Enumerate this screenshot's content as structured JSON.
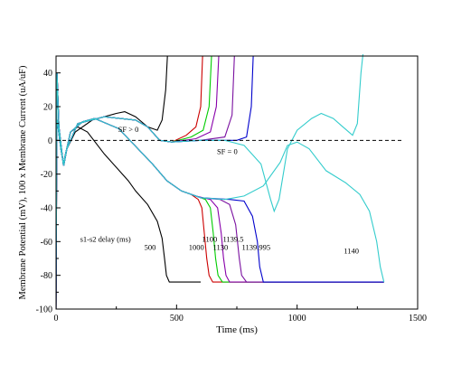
{
  "chart_data": {
    "type": "line",
    "title": "",
    "xlabel": "Time (ms)",
    "ylabel": "Membrane Potential (mV), 100 x Membrane Current (uA/uF)",
    "xlim": [
      0,
      1500
    ],
    "ylim": [
      -100,
      50
    ],
    "x_ticks": [
      0,
      500,
      1000,
      1500
    ],
    "y_ticks": [
      -100,
      -80,
      -60,
      -40,
      -20,
      0,
      20,
      40
    ],
    "grid": false,
    "legend": "none",
    "colors": {
      "black": "#000000",
      "red": "#cc0000",
      "green": "#00cc00",
      "purple": "#8800aa",
      "violet": "#7a10a0",
      "blue": "#0000cc",
      "cyan": "#33cccc"
    },
    "annotations": [
      {
        "text": "SF > 0",
        "x": 300,
        "y": 5
      },
      {
        "text": "SF = 0",
        "x": 710,
        "y": -8
      },
      {
        "text": "s1-s2 delay (ms)",
        "x": 205,
        "y": -60
      },
      {
        "text": "500",
        "x": 390,
        "y": -65
      },
      {
        "text": "1000",
        "x": 582,
        "y": -65
      },
      {
        "text": "1100",
        "x": 637,
        "y": -60
      },
      {
        "text": "1130",
        "x": 682,
        "y": -65
      },
      {
        "text": "1139.5",
        "x": 735,
        "y": -60
      },
      {
        "text": "1139.995",
        "x": 830,
        "y": -65
      },
      {
        "text": "1140",
        "x": 1225,
        "y": -67
      }
    ],
    "series": [
      {
        "color": "#000000",
        "voltage": [
          [
            0,
            -100
          ],
          [
            4,
            40
          ],
          [
            12,
            8
          ],
          [
            30,
            -14
          ],
          [
            60,
            5
          ],
          [
            90,
            8
          ],
          [
            130,
            5
          ],
          [
            200,
            -8
          ],
          [
            300,
            -24
          ],
          [
            330,
            -30
          ],
          [
            380,
            -38
          ],
          [
            420,
            -48
          ],
          [
            440,
            -58
          ],
          [
            450,
            -70
          ],
          [
            458,
            -80
          ],
          [
            470,
            -84
          ],
          [
            600,
            -84
          ]
        ],
        "current": [
          [
            0,
            5
          ],
          [
            5,
            12
          ],
          [
            20,
            -5
          ],
          [
            32,
            -15
          ],
          [
            45,
            -5
          ],
          [
            80,
            5
          ],
          [
            150,
            12
          ],
          [
            200,
            14
          ],
          [
            250,
            16
          ],
          [
            285,
            17
          ],
          [
            330,
            14
          ],
          [
            380,
            8
          ],
          [
            420,
            6
          ],
          [
            440,
            12
          ],
          [
            455,
            30
          ],
          [
            462,
            50
          ]
        ]
      },
      {
        "color": "#cc0000",
        "voltage": [
          [
            0,
            -100
          ],
          [
            4,
            40
          ],
          [
            12,
            8
          ],
          [
            30,
            -14
          ],
          [
            60,
            5
          ],
          [
            110,
            11
          ],
          [
            160,
            13
          ],
          [
            260,
            7
          ],
          [
            400,
            -14
          ],
          [
            460,
            -24
          ],
          [
            520,
            -30
          ],
          [
            560,
            -32
          ],
          [
            590,
            -35
          ],
          [
            605,
            -40
          ],
          [
            615,
            -55
          ],
          [
            625,
            -70
          ],
          [
            635,
            -80
          ],
          [
            650,
            -84
          ],
          [
            1360,
            -84
          ]
        ],
        "current": [
          [
            0,
            5
          ],
          [
            5,
            12
          ],
          [
            20,
            -5
          ],
          [
            32,
            -15
          ],
          [
            45,
            -5
          ],
          [
            90,
            10
          ],
          [
            200,
            14
          ],
          [
            330,
            12
          ],
          [
            380,
            8
          ],
          [
            430,
            0
          ],
          [
            480,
            -1
          ],
          [
            540,
            3
          ],
          [
            580,
            8
          ],
          [
            600,
            20
          ],
          [
            608,
            50
          ]
        ]
      },
      {
        "color": "#00cc00",
        "voltage": [
          [
            0,
            -100
          ],
          [
            4,
            40
          ],
          [
            12,
            8
          ],
          [
            30,
            -14
          ],
          [
            60,
            5
          ],
          [
            110,
            11
          ],
          [
            160,
            13
          ],
          [
            260,
            7
          ],
          [
            400,
            -14
          ],
          [
            460,
            -24
          ],
          [
            520,
            -30
          ],
          [
            580,
            -33
          ],
          [
            620,
            -35
          ],
          [
            640,
            -40
          ],
          [
            652,
            -55
          ],
          [
            662,
            -70
          ],
          [
            672,
            -80
          ],
          [
            690,
            -84
          ],
          [
            1360,
            -84
          ]
        ],
        "current": [
          [
            0,
            5
          ],
          [
            5,
            12
          ],
          [
            20,
            -5
          ],
          [
            32,
            -15
          ],
          [
            45,
            -5
          ],
          [
            90,
            10
          ],
          [
            200,
            14
          ],
          [
            330,
            12
          ],
          [
            380,
            8
          ],
          [
            430,
            0
          ],
          [
            480,
            -1
          ],
          [
            560,
            2
          ],
          [
            610,
            6
          ],
          [
            635,
            20
          ],
          [
            645,
            50
          ]
        ]
      },
      {
        "color": "#8800aa",
        "voltage": [
          [
            0,
            -100
          ],
          [
            4,
            40
          ],
          [
            12,
            8
          ],
          [
            30,
            -14
          ],
          [
            60,
            5
          ],
          [
            110,
            11
          ],
          [
            160,
            13
          ],
          [
            260,
            7
          ],
          [
            400,
            -14
          ],
          [
            460,
            -24
          ],
          [
            520,
            -30
          ],
          [
            580,
            -33
          ],
          [
            640,
            -35
          ],
          [
            670,
            -40
          ],
          [
            685,
            -55
          ],
          [
            695,
            -70
          ],
          [
            705,
            -80
          ],
          [
            720,
            -84
          ],
          [
            1360,
            -84
          ]
        ],
        "current": [
          [
            0,
            5
          ],
          [
            5,
            12
          ],
          [
            20,
            -5
          ],
          [
            32,
            -15
          ],
          [
            45,
            -5
          ],
          [
            90,
            10
          ],
          [
            200,
            14
          ],
          [
            330,
            12
          ],
          [
            380,
            8
          ],
          [
            430,
            0
          ],
          [
            480,
            -1
          ],
          [
            580,
            1
          ],
          [
            640,
            5
          ],
          [
            665,
            20
          ],
          [
            675,
            50
          ]
        ]
      },
      {
        "color": "#7a10a0",
        "voltage": [
          [
            0,
            -100
          ],
          [
            4,
            40
          ],
          [
            12,
            8
          ],
          [
            30,
            -14
          ],
          [
            60,
            5
          ],
          [
            110,
            11
          ],
          [
            160,
            13
          ],
          [
            260,
            7
          ],
          [
            400,
            -14
          ],
          [
            460,
            -24
          ],
          [
            520,
            -30
          ],
          [
            600,
            -34
          ],
          [
            680,
            -35
          ],
          [
            720,
            -38
          ],
          [
            745,
            -50
          ],
          [
            760,
            -70
          ],
          [
            770,
            -80
          ],
          [
            790,
            -84
          ],
          [
            1360,
            -84
          ]
        ],
        "current": [
          [
            0,
            5
          ],
          [
            5,
            12
          ],
          [
            20,
            -5
          ],
          [
            32,
            -15
          ],
          [
            45,
            -5
          ],
          [
            90,
            10
          ],
          [
            200,
            14
          ],
          [
            330,
            12
          ],
          [
            380,
            8
          ],
          [
            430,
            0
          ],
          [
            480,
            -1
          ],
          [
            600,
            0
          ],
          [
            700,
            2
          ],
          [
            730,
            15
          ],
          [
            740,
            50
          ]
        ]
      },
      {
        "color": "#0000cc",
        "voltage": [
          [
            0,
            -100
          ],
          [
            4,
            40
          ],
          [
            12,
            8
          ],
          [
            30,
            -14
          ],
          [
            60,
            5
          ],
          [
            110,
            11
          ],
          [
            160,
            13
          ],
          [
            260,
            7
          ],
          [
            400,
            -14
          ],
          [
            460,
            -24
          ],
          [
            520,
            -30
          ],
          [
            600,
            -34
          ],
          [
            720,
            -35
          ],
          [
            780,
            -36
          ],
          [
            815,
            -45
          ],
          [
            835,
            -60
          ],
          [
            845,
            -75
          ],
          [
            860,
            -84
          ],
          [
            1360,
            -84
          ]
        ],
        "current": [
          [
            0,
            5
          ],
          [
            5,
            12
          ],
          [
            20,
            -5
          ],
          [
            32,
            -15
          ],
          [
            45,
            -5
          ],
          [
            90,
            10
          ],
          [
            200,
            14
          ],
          [
            330,
            12
          ],
          [
            380,
            8
          ],
          [
            430,
            0
          ],
          [
            480,
            -1
          ],
          [
            600,
            0
          ],
          [
            750,
            0
          ],
          [
            790,
            2
          ],
          [
            810,
            20
          ],
          [
            818,
            50
          ]
        ]
      },
      {
        "color": "#33cccc",
        "voltage": [
          [
            0,
            -100
          ],
          [
            4,
            40
          ],
          [
            12,
            8
          ],
          [
            30,
            -14
          ],
          [
            60,
            5
          ],
          [
            110,
            11
          ],
          [
            160,
            13
          ],
          [
            260,
            7
          ],
          [
            400,
            -14
          ],
          [
            460,
            -24
          ],
          [
            520,
            -30
          ],
          [
            600,
            -34
          ],
          [
            700,
            -35
          ],
          [
            780,
            -33
          ],
          [
            860,
            -27
          ],
          [
            930,
            -13
          ],
          [
            960,
            -3
          ],
          [
            1000,
            -1
          ],
          [
            1050,
            -5
          ],
          [
            1120,
            -18
          ],
          [
            1200,
            -25
          ],
          [
            1260,
            -32
          ],
          [
            1300,
            -42
          ],
          [
            1330,
            -60
          ],
          [
            1345,
            -75
          ],
          [
            1360,
            -84
          ]
        ],
        "current": [
          [
            0,
            5
          ],
          [
            5,
            12
          ],
          [
            20,
            -5
          ],
          [
            32,
            -15
          ],
          [
            45,
            -5
          ],
          [
            90,
            10
          ],
          [
            200,
            14
          ],
          [
            330,
            12
          ],
          [
            380,
            8
          ],
          [
            430,
            0
          ],
          [
            480,
            -1
          ],
          [
            600,
            0
          ],
          [
            700,
            0
          ],
          [
            780,
            -3
          ],
          [
            850,
            -14
          ],
          [
            890,
            -35
          ],
          [
            905,
            -42
          ],
          [
            925,
            -35
          ],
          [
            960,
            -5
          ],
          [
            1000,
            6
          ],
          [
            1060,
            13
          ],
          [
            1100,
            16
          ],
          [
            1150,
            13
          ],
          [
            1190,
            8
          ],
          [
            1230,
            3
          ],
          [
            1250,
            10
          ],
          [
            1265,
            40
          ],
          [
            1280,
            60
          ]
        ]
      }
    ]
  }
}
